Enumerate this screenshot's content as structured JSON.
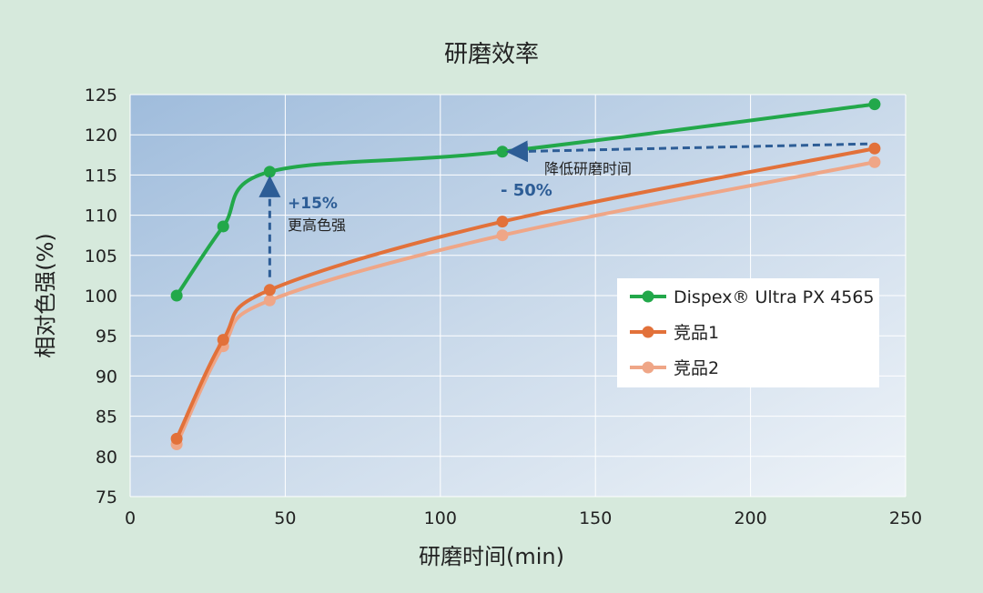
{
  "chart_data": {
    "type": "line",
    "title": "研磨效率",
    "x_label": "研磨时间(min)",
    "y_label": "相对色强(%)",
    "xlim": [
      0,
      250
    ],
    "xticks": [
      0,
      50,
      100,
      150,
      200,
      250
    ],
    "ylim": [
      75,
      125
    ],
    "yticks": [
      75,
      80,
      85,
      90,
      95,
      100,
      105,
      110,
      115,
      120,
      125
    ],
    "grid": true,
    "legend": "right",
    "series": [
      {
        "name": "Dispex® Ultra PX 4565",
        "color": "#22a84a",
        "x": [
          15,
          30,
          45,
          120,
          240
        ],
        "values": [
          100,
          108.6,
          115.4,
          117.9,
          123.8
        ]
      },
      {
        "name": "竞品1",
        "color": "#e2713a",
        "x": [
          15,
          30,
          45,
          120,
          240
        ],
        "values": [
          82.2,
          94.5,
          100.7,
          109.2,
          118.3
        ]
      },
      {
        "name": "竞品2",
        "color": "#efa687",
        "x": [
          15,
          30,
          45,
          120,
          240
        ],
        "values": [
          81.5,
          93.7,
          99.4,
          107.5,
          116.6
        ]
      }
    ],
    "annotations": [
      "+15%",
      "更高色强",
      "降低研磨时间",
      "- 50%"
    ]
  }
}
